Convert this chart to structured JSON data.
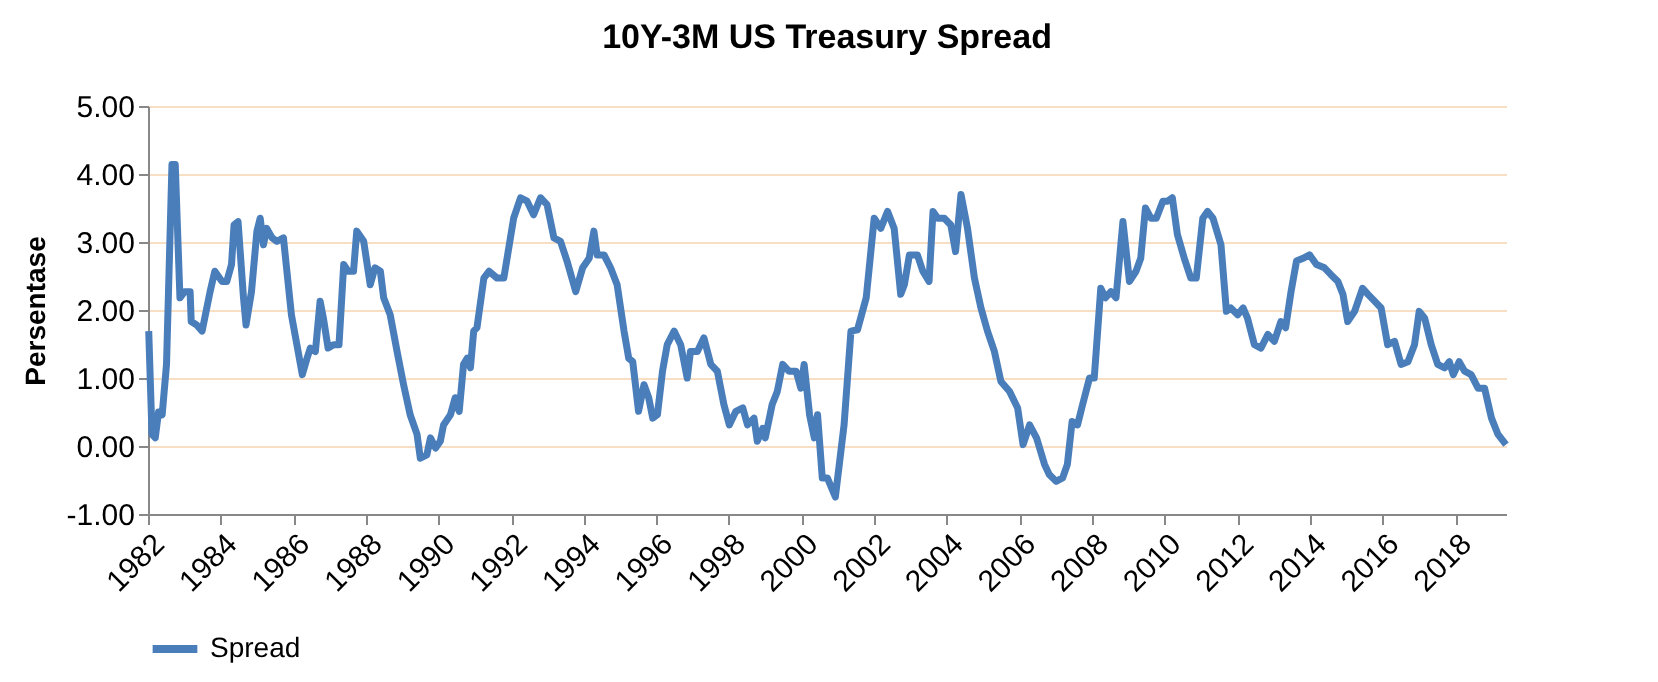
{
  "chart_data": {
    "type": "line",
    "title": "10Y-3M US Treasury Spread",
    "ylabel": "Persentase",
    "xlim": [
      1982,
      2019.4
    ],
    "xticks": [
      1982,
      1984,
      1986,
      1988,
      1990,
      1992,
      1994,
      1996,
      1998,
      2000,
      2002,
      2004,
      2006,
      2008,
      2010,
      2012,
      2014,
      2016,
      2018
    ],
    "ylim": [
      -1,
      5
    ],
    "yticks": [
      {
        "value": -1,
        "label": "-1.00"
      },
      {
        "value": 0,
        "label": "0.00"
      },
      {
        "value": 1,
        "label": "1.00"
      },
      {
        "value": 2,
        "label": "2.00"
      },
      {
        "value": 3,
        "label": "3.00"
      },
      {
        "value": 4,
        "label": "4.00"
      },
      {
        "value": 5,
        "label": "5.00"
      }
    ],
    "grid": "y",
    "legend": "bottom",
    "marker": "none",
    "line_style": "solid",
    "series": [
      {
        "name": "Spread",
        "color": "#4a7ebb",
        "x": [
          1982.02,
          1982.11,
          1982.2,
          1982.29,
          1982.39,
          1982.51,
          1982.66,
          1982.75,
          1982.88,
          1983.01,
          1983.16,
          1983.19,
          1983.34,
          1983.49,
          1983.71,
          1983.84,
          1984.04,
          1984.17,
          1984.3,
          1984.37,
          1984.48,
          1984.63,
          1984.7,
          1984.85,
          1985.0,
          1985.09,
          1985.18,
          1985.27,
          1985.42,
          1985.55,
          1985.73,
          1985.95,
          1986.1,
          1986.25,
          1986.38,
          1986.47,
          1986.61,
          1986.74,
          1986.83,
          1986.96,
          1987.11,
          1987.26,
          1987.39,
          1987.51,
          1987.66,
          1987.75,
          1987.94,
          1988.12,
          1988.25,
          1988.4,
          1988.49,
          1988.67,
          1988.86,
          1989.04,
          1989.22,
          1989.41,
          1989.5,
          1989.68,
          1989.78,
          1989.92,
          1990.05,
          1990.14,
          1990.33,
          1990.46,
          1990.57,
          1990.69,
          1990.79,
          1990.88,
          1990.97,
          1991.06,
          1991.25,
          1991.39,
          1991.61,
          1991.8,
          1992.07,
          1992.26,
          1992.44,
          1992.62,
          1992.81,
          1992.99,
          1993.18,
          1993.36,
          1993.54,
          1993.78,
          1993.97,
          1994.15,
          1994.28,
          1994.37,
          1994.56,
          1994.74,
          1994.92,
          1995.11,
          1995.24,
          1995.35,
          1995.51,
          1995.66,
          1995.79,
          1995.9,
          1996.03,
          1996.17,
          1996.3,
          1996.49,
          1996.67,
          1996.85,
          1996.94,
          1997.13,
          1997.31,
          1997.5,
          1997.68,
          1997.86,
          1998.01,
          1998.19,
          1998.38,
          1998.51,
          1998.69,
          1998.78,
          1998.93,
          1999.0,
          1999.19,
          1999.33,
          1999.48,
          1999.65,
          1999.85,
          1999.98,
          2000.07,
          2000.22,
          2000.35,
          2000.44,
          2000.57,
          2000.71,
          2000.93,
          2001.17,
          2001.36,
          2001.54,
          2001.78,
          2002.0,
          2002.18,
          2002.37,
          2002.55,
          2002.73,
          2002.83,
          2002.97,
          2003.19,
          2003.34,
          2003.51,
          2003.62,
          2003.75,
          2003.93,
          2004.11,
          2004.24,
          2004.39,
          2004.57,
          2004.76,
          2004.94,
          2005.12,
          2005.31,
          2005.49,
          2005.73,
          2005.95,
          2006.1,
          2006.28,
          2006.47,
          2006.69,
          2006.82,
          2007.01,
          2007.19,
          2007.32,
          2007.45,
          2007.6,
          2007.74,
          2007.93,
          2008.06,
          2008.24,
          2008.37,
          2008.52,
          2008.66,
          2008.85,
          2009.03,
          2009.21,
          2009.34,
          2009.47,
          2009.62,
          2009.77,
          2009.95,
          2010.08,
          2010.21,
          2010.35,
          2010.54,
          2010.72,
          2010.87,
          2011.05,
          2011.18,
          2011.33,
          2011.55,
          2011.7,
          2011.82,
          2012.01,
          2012.16,
          2012.28,
          2012.47,
          2012.65,
          2012.84,
          2013.02,
          2013.2,
          2013.33,
          2013.48,
          2013.63,
          2013.81,
          2013.99,
          2014.18,
          2014.4,
          2014.58,
          2014.77,
          2014.91,
          2015.04,
          2015.23,
          2015.45,
          2015.6,
          2015.78,
          2015.96,
          2016.14,
          2016.33,
          2016.51,
          2016.7,
          2016.88,
          2017.01,
          2017.16,
          2017.34,
          2017.52,
          2017.71,
          2017.84,
          2017.95,
          2018.11,
          2018.26,
          2018.44,
          2018.63,
          2018.81,
          2019.0,
          2019.18,
          2019.4
        ],
        "values": [
          1.69,
          0.17,
          0.12,
          0.5,
          0.46,
          1.2,
          4.14,
          4.14,
          2.18,
          2.27,
          2.27,
          1.83,
          1.78,
          1.69,
          2.27,
          2.57,
          2.42,
          2.42,
          2.67,
          3.25,
          3.3,
          2.18,
          1.78,
          2.27,
          3.16,
          3.35,
          2.96,
          3.2,
          3.06,
          3.01,
          3.06,
          1.93,
          1.49,
          1.05,
          1.29,
          1.44,
          1.39,
          2.13,
          1.88,
          1.44,
          1.49,
          1.49,
          2.67,
          2.57,
          2.57,
          3.16,
          3.01,
          2.37,
          2.62,
          2.57,
          2.18,
          1.93,
          1.39,
          0.9,
          0.46,
          0.17,
          -0.18,
          -0.13,
          0.12,
          -0.03,
          0.07,
          0.31,
          0.46,
          0.71,
          0.51,
          1.2,
          1.29,
          1.15,
          1.69,
          1.74,
          2.47,
          2.57,
          2.47,
          2.47,
          3.35,
          3.65,
          3.6,
          3.4,
          3.65,
          3.55,
          3.06,
          3.01,
          2.72,
          2.27,
          2.62,
          2.76,
          3.16,
          2.81,
          2.81,
          2.62,
          2.37,
          1.69,
          1.29,
          1.24,
          0.51,
          0.9,
          0.71,
          0.41,
          0.46,
          1.1,
          1.49,
          1.69,
          1.49,
          1.0,
          1.39,
          1.39,
          1.59,
          1.2,
          1.1,
          0.61,
          0.31,
          0.51,
          0.56,
          0.31,
          0.41,
          0.07,
          0.26,
          0.12,
          0.61,
          0.8,
          1.2,
          1.1,
          1.1,
          0.85,
          1.2,
          0.46,
          0.12,
          0.46,
          -0.47,
          -0.47,
          -0.75,
          0.31,
          1.69,
          1.71,
          2.18,
          3.35,
          3.2,
          3.45,
          3.2,
          2.23,
          2.37,
          2.81,
          2.81,
          2.57,
          2.42,
          3.45,
          3.35,
          3.35,
          3.25,
          2.86,
          3.7,
          3.2,
          2.47,
          2.03,
          1.69,
          1.39,
          0.95,
          0.8,
          0.56,
          0.02,
          0.31,
          0.12,
          -0.27,
          -0.42,
          -0.52,
          -0.47,
          -0.27,
          0.36,
          0.31,
          0.61,
          1.0,
          1.0,
          2.32,
          2.18,
          2.27,
          2.18,
          3.3,
          2.42,
          2.57,
          2.76,
          3.5,
          3.35,
          3.35,
          3.6,
          3.6,
          3.65,
          3.11,
          2.76,
          2.47,
          2.47,
          3.35,
          3.45,
          3.35,
          2.96,
          1.98,
          2.03,
          1.93,
          2.03,
          1.88,
          1.49,
          1.44,
          1.64,
          1.54,
          1.83,
          1.74,
          2.27,
          2.72,
          2.76,
          2.81,
          2.67,
          2.62,
          2.52,
          2.42,
          2.23,
          1.83,
          1.98,
          2.32,
          2.23,
          2.13,
          2.03,
          1.49,
          1.54,
          1.2,
          1.24,
          1.49,
          1.98,
          1.88,
          1.49,
          1.2,
          1.15,
          1.24,
          1.05,
          1.24,
          1.1,
          1.05,
          0.85,
          0.85,
          0.41,
          0.17,
          0.02
        ]
      }
    ]
  }
}
